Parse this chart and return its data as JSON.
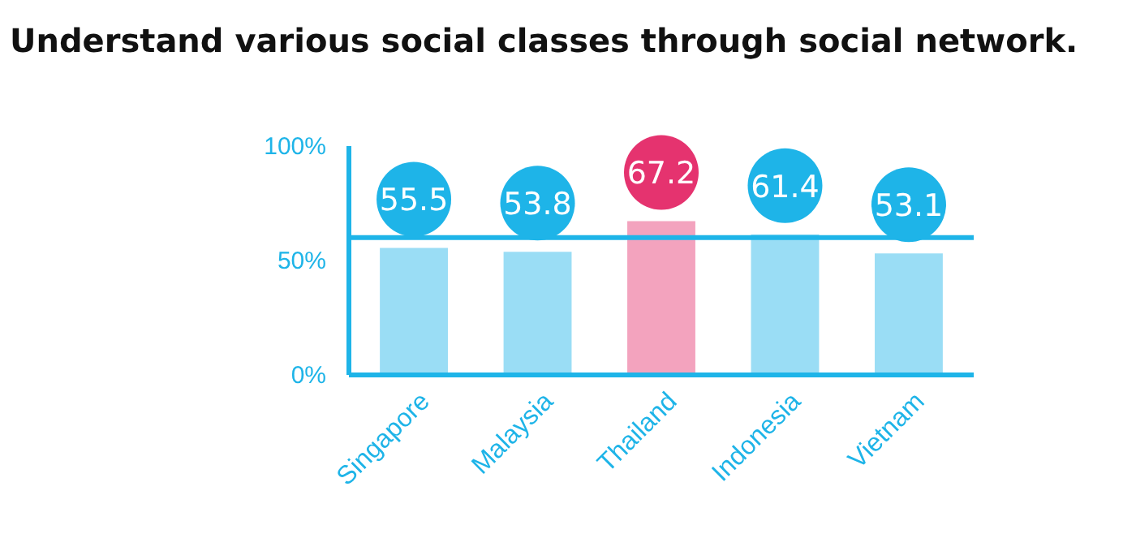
{
  "chart_data": {
    "type": "bar",
    "title": "Understand various social classes through social network.",
    "categories": [
      "Singapore",
      "Malaysia",
      "Thailand",
      "Indonesia",
      "Vietnam"
    ],
    "values": [
      55.5,
      53.8,
      67.2,
      61.4,
      53.1
    ],
    "colors": [
      "#1eb4e8",
      "#1eb4e8",
      "#e5336f",
      "#1eb4e8",
      "#1eb4e8"
    ],
    "ylim": [
      0,
      100
    ],
    "yticks": [
      {
        "value": 0,
        "label": "0%"
      },
      {
        "value": 50,
        "label": "50%"
      },
      {
        "value": 100,
        "label": "100%"
      }
    ],
    "ref_lines": [
      {
        "axis": "y",
        "value": 60,
        "color": "#1eb4e8"
      }
    ],
    "data_labels": true
  }
}
